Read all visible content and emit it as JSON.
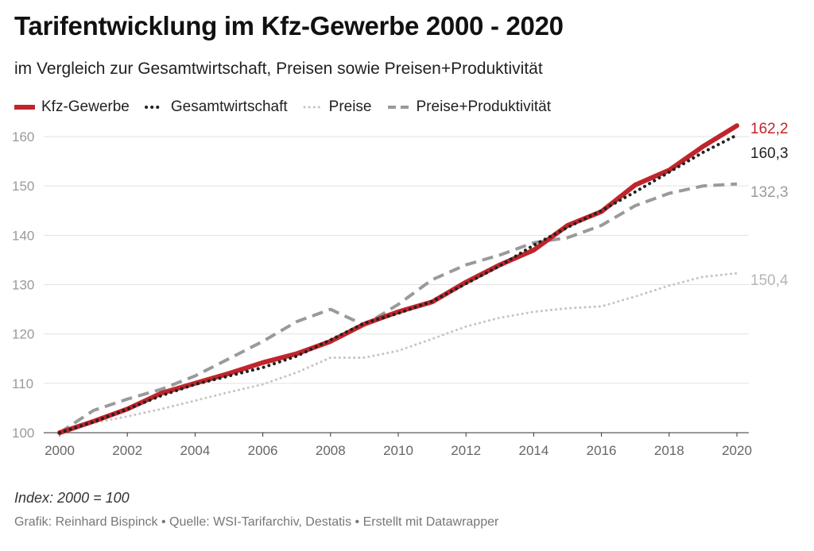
{
  "header": {
    "title": "Tarifentwicklung im Kfz-Gewerbe 2000 - 2020",
    "subtitle": "im Vergleich zur Gesamtwirtschaft, Preisen sowie Preisen+Produktivität"
  },
  "footer": {
    "note": "Index: 2000 = 100",
    "source": "Grafik: Reinhard Bispinck • Quelle: WSI-Tarifarchiv, Destatis • Erstellt mit Datawrapper"
  },
  "chart_data": {
    "type": "line",
    "title": "Tarifentwicklung im Kfz-Gewerbe 2000 - 2020",
    "subtitle": "im Vergleich zur Gesamtwirtschaft, Preisen sowie Preisen+Produktivität",
    "xlabel": "",
    "ylabel": "",
    "x": [
      2000,
      2001,
      2002,
      2003,
      2004,
      2005,
      2006,
      2007,
      2008,
      2009,
      2010,
      2011,
      2012,
      2013,
      2014,
      2015,
      2016,
      2017,
      2018,
      2019,
      2020
    ],
    "xticks": [
      "2000",
      "2002",
      "2004",
      "2006",
      "2008",
      "2010",
      "2012",
      "2014",
      "2016",
      "2018",
      "2020"
    ],
    "yticks": [
      "100",
      "110",
      "120",
      "130",
      "140",
      "150",
      "160"
    ],
    "ylim": [
      100,
      162
    ],
    "grid": true,
    "legend": "top-left",
    "series": [
      {
        "name": "Kfz-Gewerbe",
        "color": "#c0252b",
        "style": "solid",
        "values": [
          100,
          102.3,
          104.8,
          108,
          110,
          112,
          114.2,
          116,
          118.5,
          122,
          124.5,
          126.5,
          130.5,
          134,
          137,
          142,
          144.8,
          150.2,
          153.2,
          158,
          162.2
        ],
        "end_label": "162,2"
      },
      {
        "name": "Gesamtwirtschaft",
        "color": "#222222",
        "style": "dotted",
        "values": [
          100,
          102.2,
          104.8,
          107.5,
          109.8,
          111.5,
          113.2,
          115.5,
          118.8,
          122.2,
          124.2,
          126.6,
          130.2,
          133.8,
          138,
          141.6,
          145,
          148.8,
          152.8,
          156.8,
          160.3
        ],
        "end_label": "160,3"
      },
      {
        "name": "Preise",
        "color": "#c4c4c4",
        "style": "dotted",
        "values": [
          100,
          102,
          103.3,
          104.8,
          106.5,
          108.2,
          109.8,
          112.2,
          115.2,
          115.2,
          116.6,
          119,
          121.5,
          123.3,
          124.5,
          125.2,
          125.6,
          127.6,
          129.8,
          131.6,
          132.3
        ],
        "end_label": "132,3"
      },
      {
        "name": "Preise+Produktivität",
        "color": "#9a9a9a",
        "style": "dashed",
        "values": [
          100,
          104.5,
          106.8,
          108.8,
          111.5,
          115,
          118.5,
          122.5,
          125,
          121.8,
          126,
          131,
          134,
          136,
          138.5,
          139.5,
          142,
          146,
          148.5,
          150,
          150.4
        ],
        "end_label": "150,4"
      }
    ]
  }
}
